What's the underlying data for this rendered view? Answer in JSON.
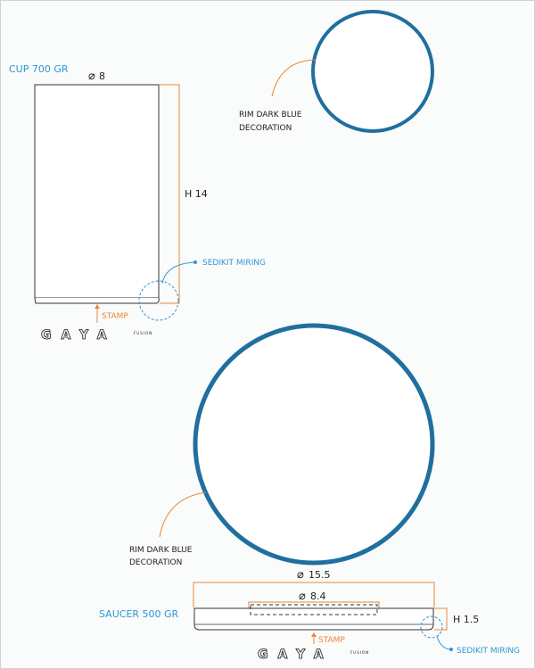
{
  "cup": {
    "title": "CUP 700 GR",
    "diameter": "8",
    "height": "H 14",
    "rim_note": [
      "RIM DARK BLUE",
      "DECORATION"
    ],
    "edge_note": "SEDIKIT MIRING",
    "stamp": "STAMP"
  },
  "saucer": {
    "title": "SAUCER 500 GR",
    "outer_diameter": "15.5",
    "inner_diameter": "8.4",
    "height": "H 1.5",
    "rim_note": [
      "RIM DARK BLUE",
      "DECORATION"
    ],
    "edge_note": "SEDIKIT MIRING",
    "stamp": "STAMP"
  },
  "logo": {
    "text": "GAYA",
    "sub": "FUSION"
  },
  "symbols": {
    "diameter": "⌀"
  },
  "colors": {
    "rim": "#1f6f9f",
    "accent_blue": "#2f97d3",
    "dimension": "#e8873a",
    "outline": "#333333"
  }
}
